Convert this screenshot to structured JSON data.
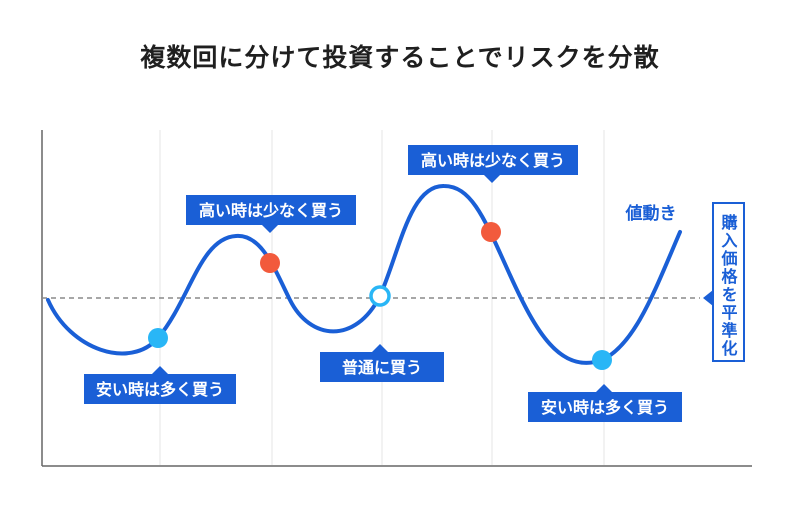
{
  "title": "複数回に分けて投資することでリスクを分散",
  "labels": {
    "cheap_left": "安い時は多く買う",
    "high_left": "高い時は少なく買う",
    "normal": "普通に買う",
    "high_right": "高い時は少なく買う",
    "cheap_right": "安い時は多く買う",
    "price_move": "値動き",
    "average": "購入価格を平準化"
  },
  "colors": {
    "curve": "#1a5fd6",
    "label_bg": "#1a5fd6",
    "label_text": "#ffffff",
    "cheap_dot": "#29b6f6",
    "high_dot": "#f25a3c",
    "normal_dot_stroke": "#29b6f6",
    "average_line": "#8a8a8a",
    "grid": "#e5e5e5",
    "axis": "#666666"
  }
}
